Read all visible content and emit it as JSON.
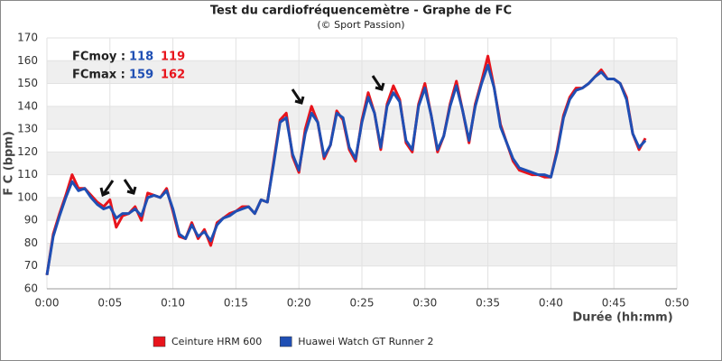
{
  "chart_data": {
    "type": "line",
    "title": "Test du cardiofréquencemètre - Graphe de FC",
    "subtitle": "(© Sport Passion)",
    "x_label": "Durée (hh:mm)",
    "y_label": "F C (bpm)",
    "xlim": [
      0,
      50
    ],
    "xticks": [
      {
        "value": 0,
        "label": "0:00"
      },
      {
        "value": 5,
        "label": "0:05"
      },
      {
        "value": 10,
        "label": "0:10"
      },
      {
        "value": 15,
        "label": "0:15"
      },
      {
        "value": 20,
        "label": "0:20"
      },
      {
        "value": 25,
        "label": "0:25"
      },
      {
        "value": 30,
        "label": "0:30"
      },
      {
        "value": 35,
        "label": "0:35"
      },
      {
        "value": 40,
        "label": "0:40"
      },
      {
        "value": 45,
        "label": "0:45"
      },
      {
        "value": 50,
        "label": "0:50"
      }
    ],
    "ylim": [
      60,
      170
    ],
    "yticks": [
      60,
      70,
      80,
      90,
      100,
      110,
      120,
      130,
      140,
      150,
      160,
      170
    ],
    "grid": true,
    "x": [
      0,
      0.5,
      1,
      1.5,
      2,
      2.5,
      3,
      3.5,
      4,
      4.5,
      5,
      5.5,
      6,
      6.5,
      7,
      7.5,
      8,
      8.5,
      9,
      9.5,
      10,
      10.5,
      11,
      11.5,
      12,
      12.5,
      13,
      13.5,
      14,
      14.5,
      15,
      15.5,
      16,
      16.5,
      17,
      17.5,
      18,
      18.5,
      19,
      19.5,
      20,
      20.5,
      21,
      21.5,
      22,
      22.5,
      23,
      23.5,
      24,
      24.5,
      25,
      25.5,
      26,
      26.5,
      27,
      27.5,
      28,
      28.5,
      29,
      29.5,
      30,
      30.5,
      31,
      31.5,
      32,
      32.5,
      33,
      33.5,
      34,
      34.5,
      35,
      35.5,
      36,
      36.5,
      37,
      37.5,
      38,
      38.5,
      39,
      39.5,
      40,
      40.5,
      41,
      41.5,
      42,
      42.5,
      43,
      43.5,
      44,
      44.5,
      45,
      45.5,
      46,
      46.5,
      47,
      47.5
    ],
    "series": [
      {
        "name": "Ceinture HRM 600",
        "color": "#e8141c",
        "values": [
          66,
          84,
          93,
          101,
          110,
          104,
          104,
          101,
          98,
          96,
          99,
          87,
          92,
          93,
          96,
          90,
          102,
          101,
          100,
          104,
          94,
          83,
          82,
          89,
          82,
          86,
          79,
          89,
          91,
          93,
          94,
          96,
          96,
          93,
          99,
          98,
          116,
          134,
          137,
          118,
          111,
          130,
          140,
          133,
          117,
          123,
          138,
          134,
          121,
          116,
          134,
          146,
          137,
          121,
          141,
          149,
          143,
          124,
          120,
          141,
          150,
          136,
          120,
          127,
          141,
          151,
          138,
          124,
          141,
          151,
          162,
          148,
          132,
          124,
          116,
          112,
          111,
          110,
          110,
          109,
          109,
          121,
          136,
          144,
          148,
          148,
          150,
          153,
          156,
          152,
          152,
          150,
          144,
          128,
          121,
          126
        ]
      },
      {
        "name": "Huawei Watch GT Runner 2",
        "color": "#1f4fb4",
        "values": [
          66,
          83,
          92,
          100,
          107,
          103,
          104,
          100,
          97,
          95,
          96,
          91,
          93,
          93,
          95,
          92,
          100,
          101,
          100,
          103,
          95,
          84,
          82,
          88,
          83,
          85,
          81,
          88,
          91,
          92,
          94,
          95,
          96,
          93,
          99,
          98,
          115,
          133,
          135,
          119,
          112,
          128,
          137,
          133,
          118,
          123,
          137,
          135,
          122,
          117,
          133,
          144,
          137,
          122,
          140,
          146,
          142,
          125,
          121,
          140,
          148,
          136,
          121,
          127,
          140,
          149,
          138,
          125,
          140,
          150,
          158,
          148,
          131,
          124,
          117,
          113,
          112,
          111,
          110,
          110,
          109,
          120,
          135,
          143,
          147,
          148,
          150,
          153,
          155,
          152,
          152,
          150,
          143,
          128,
          122,
          125
        ]
      }
    ],
    "legend": "bottom",
    "stats": [
      {
        "label": "FCmoy :",
        "values": [
          118,
          119
        ]
      },
      {
        "label": "FCmax :",
        "values": [
          159,
          162
        ]
      }
    ]
  }
}
